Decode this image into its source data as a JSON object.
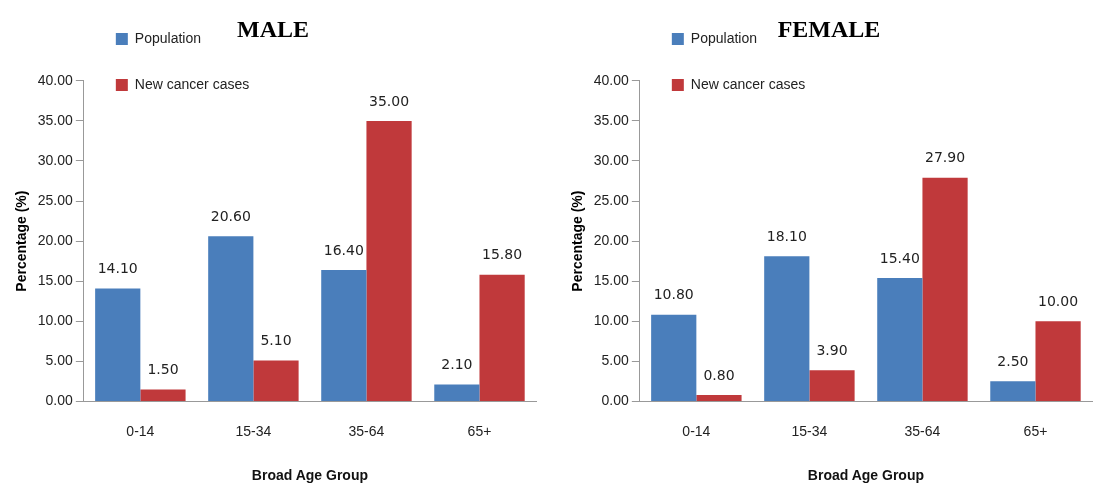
{
  "chart_data": [
    {
      "type": "bar",
      "title": "MALE",
      "xlabel": "Broad Age Group",
      "ylabel": "Percentage (%)",
      "categories": [
        "0-14",
        "15-34",
        "35-64",
        "65+"
      ],
      "series": [
        {
          "name": "Population",
          "color": "#4a7ebb",
          "values": [
            14.1,
            20.6,
            16.4,
            2.1
          ],
          "value_labels": [
            "14.10",
            "20.60",
            "16.40",
            "2.10"
          ]
        },
        {
          "name": "New cancer cases",
          "color": "#c0393b",
          "values": [
            1.5,
            5.1,
            35.0,
            15.8
          ],
          "value_labels": [
            "1.50",
            "5.10",
            "35.00",
            "15.80"
          ]
        }
      ],
      "ylim": [
        0,
        40
      ],
      "yticks": [
        {
          "value": 0,
          "label": "0.00"
        },
        {
          "value": 5,
          "label": "5.00"
        },
        {
          "value": 10,
          "label": "10.00"
        },
        {
          "value": 15,
          "label": "15.00"
        },
        {
          "value": 20,
          "label": "20.00"
        },
        {
          "value": 25,
          "label": "25.00"
        },
        {
          "value": 30,
          "label": "30.00"
        },
        {
          "value": 35,
          "label": "35.00"
        },
        {
          "value": 40,
          "label": "40.00"
        }
      ],
      "grid": false,
      "legend": "top left"
    },
    {
      "type": "bar",
      "title": "FEMALE",
      "xlabel": "Broad Age Group",
      "ylabel": "Percentage (%)",
      "categories": [
        "0-14",
        "15-34",
        "35-64",
        "65+"
      ],
      "series": [
        {
          "name": "Population",
          "color": "#4a7ebb",
          "values": [
            10.8,
            18.1,
            15.4,
            2.5
          ],
          "value_labels": [
            "10.80",
            "18.10",
            "15.40",
            "2.50"
          ]
        },
        {
          "name": "New cancer cases",
          "color": "#c0393b",
          "values": [
            0.8,
            3.9,
            27.9,
            10.0
          ],
          "value_labels": [
            "0.80",
            "3.90",
            "27.90",
            "10.00"
          ]
        }
      ],
      "ylim": [
        0,
        40
      ],
      "yticks": [
        {
          "value": 0,
          "label": "0.00"
        },
        {
          "value": 5,
          "label": "5.00"
        },
        {
          "value": 10,
          "label": "10.00"
        },
        {
          "value": 15,
          "label": "15.00"
        },
        {
          "value": 20,
          "label": "20.00"
        },
        {
          "value": 25,
          "label": "25.00"
        },
        {
          "value": 30,
          "label": "30.00"
        },
        {
          "value": 35,
          "label": "35.00"
        },
        {
          "value": 40,
          "label": "40.00"
        }
      ],
      "grid": false,
      "legend": "top left"
    }
  ]
}
